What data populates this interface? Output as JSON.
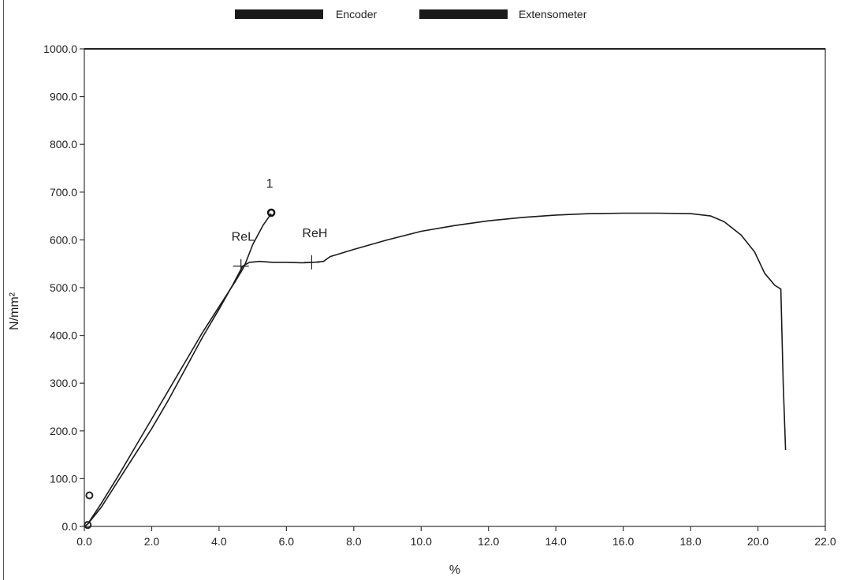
{
  "chart_data": {
    "type": "line",
    "title": "",
    "xlabel": "%",
    "ylabel": "N/mm²",
    "xlim": [
      0,
      22
    ],
    "ylim": [
      0,
      1000
    ],
    "x_ticks": [
      "0.0",
      "2.0",
      "4.0",
      "6.0",
      "8.0",
      "10.0",
      "12.0",
      "14.0",
      "16.0",
      "18.0",
      "20.0",
      "22.0"
    ],
    "y_ticks": [
      "0.0",
      "100.0",
      "200.0",
      "300.0",
      "400.0",
      "500.0",
      "600.0",
      "700.0",
      "800.0",
      "900.0",
      "1000.0"
    ],
    "grid": false,
    "legend_position": "top-center",
    "legend": [
      "Encoder",
      "Extensometer"
    ],
    "series": [
      {
        "name": "Encoder",
        "color": "#1a1a1a",
        "points": [
          [
            0.0,
            0
          ],
          [
            0.1,
            5
          ],
          [
            0.5,
            40
          ],
          [
            1.0,
            95
          ],
          [
            1.5,
            150
          ],
          [
            2.0,
            205
          ],
          [
            2.5,
            265
          ],
          [
            3.0,
            330
          ],
          [
            3.5,
            395
          ],
          [
            4.0,
            455
          ],
          [
            4.4,
            505
          ],
          [
            4.7,
            545
          ],
          [
            4.9,
            553
          ],
          [
            5.2,
            555
          ],
          [
            5.6,
            553
          ],
          [
            6.0,
            553
          ],
          [
            6.5,
            552
          ],
          [
            6.8,
            553
          ],
          [
            7.1,
            555
          ],
          [
            7.3,
            565
          ],
          [
            8.0,
            580
          ],
          [
            9.0,
            600
          ],
          [
            10.0,
            618
          ],
          [
            11.0,
            630
          ],
          [
            12.0,
            640
          ],
          [
            13.0,
            647
          ],
          [
            14.0,
            652
          ],
          [
            15.0,
            655
          ],
          [
            16.0,
            656
          ],
          [
            17.0,
            656
          ],
          [
            18.0,
            655
          ],
          [
            18.6,
            650
          ],
          [
            19.0,
            638
          ],
          [
            19.5,
            610
          ],
          [
            19.9,
            575
          ],
          [
            20.2,
            530
          ],
          [
            20.5,
            505
          ],
          [
            20.68,
            497
          ],
          [
            20.75,
            300
          ],
          [
            20.82,
            160
          ]
        ]
      },
      {
        "name": "Extensometer",
        "color": "#1a1a1a",
        "points": [
          [
            0.1,
            5
          ],
          [
            0.5,
            48
          ],
          [
            1.0,
            105
          ],
          [
            1.5,
            165
          ],
          [
            2.0,
            225
          ],
          [
            2.5,
            285
          ],
          [
            3.0,
            345
          ],
          [
            3.5,
            405
          ],
          [
            4.0,
            460
          ],
          [
            4.5,
            515
          ],
          [
            4.75,
            545
          ],
          [
            5.0,
            590
          ],
          [
            5.3,
            630
          ],
          [
            5.55,
            655
          ]
        ]
      }
    ],
    "markers": [
      {
        "label": "ReL",
        "x": 4.65,
        "y": 545
      },
      {
        "label": "ReH",
        "x": 6.75,
        "y": 553
      }
    ],
    "end_point": {
      "label": "1",
      "x": 5.55,
      "y": 657
    },
    "origin_markers": [
      {
        "x": 0.15,
        "y": 65
      },
      {
        "x": 0.1,
        "y": 3
      }
    ]
  }
}
